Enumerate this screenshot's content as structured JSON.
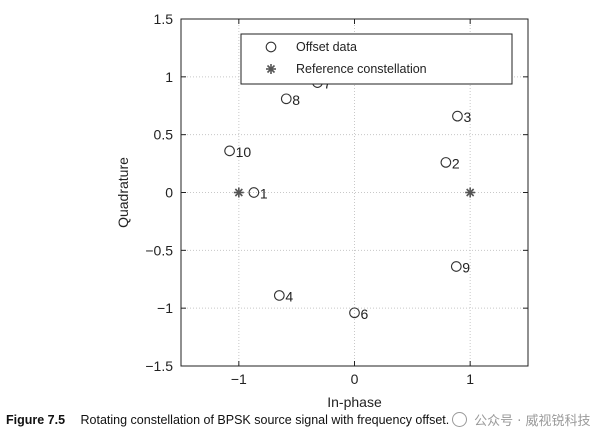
{
  "chart_data": {
    "type": "scatter",
    "xlabel": "In-phase",
    "ylabel": "Quadrature",
    "xlim": [
      -1.5,
      1.5
    ],
    "ylim": [
      -1.5,
      1.5
    ],
    "x_ticks": [
      -1,
      0,
      1
    ],
    "y_ticks": [
      -1.5,
      -1,
      -0.5,
      0,
      0.5,
      1,
      1.5
    ],
    "x_tick_labels": [
      "−1",
      "0",
      "1"
    ],
    "y_tick_labels": [
      "−1.5",
      "−1",
      "−0.5",
      "0",
      "0.5",
      "1",
      "1.5"
    ],
    "grid": true,
    "legend_position": "top-right",
    "series": [
      {
        "name": "Offset data",
        "marker": "circle",
        "points": [
          {
            "x": -0.87,
            "y": 0.0,
            "label": "1"
          },
          {
            "x": 0.79,
            "y": 0.26,
            "label": "2"
          },
          {
            "x": 0.89,
            "y": 0.66,
            "label": "3"
          },
          {
            "x": -0.65,
            "y": -0.89,
            "label": "4"
          },
          {
            "x": 0.0,
            "y": -1.04,
            "label": "6"
          },
          {
            "x": -0.32,
            "y": 0.95,
            "label": "7"
          },
          {
            "x": -0.59,
            "y": 0.81,
            "label": "8"
          },
          {
            "x": 0.88,
            "y": -0.64,
            "label": "9"
          },
          {
            "x": -1.08,
            "y": 0.36,
            "label": "10"
          }
        ]
      },
      {
        "name": "Reference constellation",
        "marker": "asterisk",
        "points": [
          {
            "x": -1,
            "y": 0
          },
          {
            "x": 1,
            "y": 0
          }
        ]
      }
    ]
  },
  "caption": {
    "figure_label": "Figure 7.5",
    "text": "Rotating constellation of BPSK source signal with frequency offset."
  },
  "watermark": {
    "text": "公众号 · 威视锐科技"
  }
}
